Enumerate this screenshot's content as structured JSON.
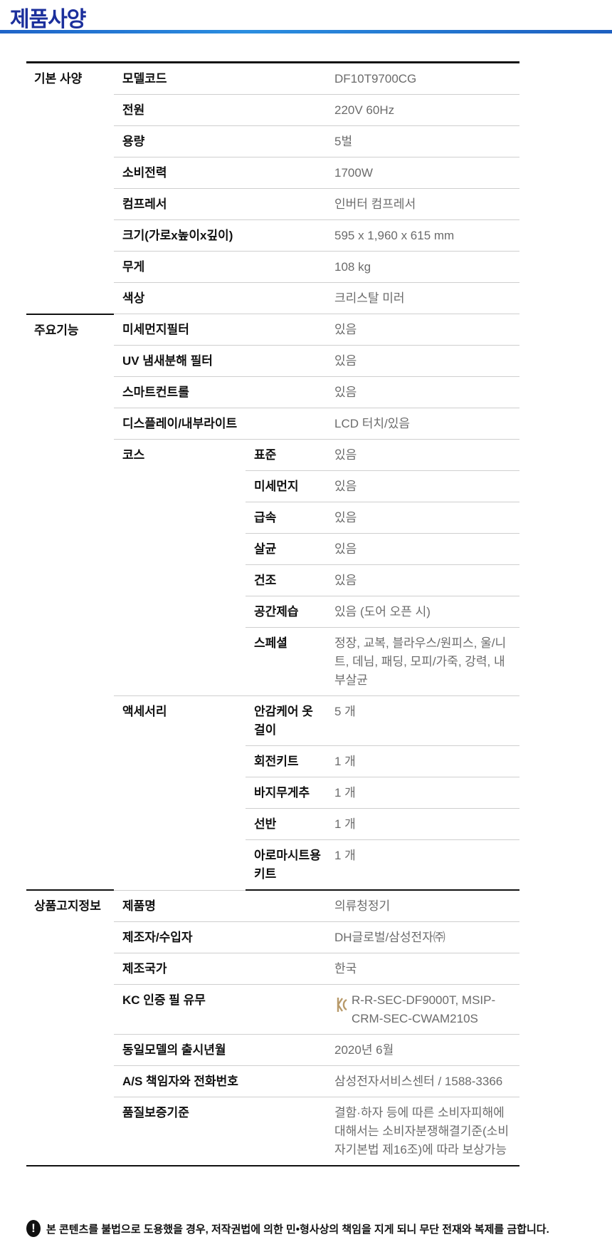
{
  "title": "제품사양",
  "sections": {
    "basic": {
      "label": "기본 사양",
      "rows": [
        {
          "label": "모델코드",
          "value": "DF10T9700CG"
        },
        {
          "label": "전원",
          "value": "220V 60Hz"
        },
        {
          "label": "용량",
          "value": "5벌"
        },
        {
          "label": "소비전력",
          "value": "1700W"
        },
        {
          "label": "컴프레서",
          "value": "인버터 컴프레서"
        },
        {
          "label": "크기(가로x높이x깊이)",
          "value": "595 x 1,960 x 615 mm"
        },
        {
          "label": "무게",
          "value": "108 kg"
        },
        {
          "label": "색상",
          "value": "크리스탈 미러"
        }
      ]
    },
    "features": {
      "label": "주요기능",
      "rows": [
        {
          "label": "미세먼지필터",
          "value": "있음"
        },
        {
          "label": "UV 냄새분해 필터",
          "value": "있음"
        },
        {
          "label": "스마트컨트롤",
          "value": "있음"
        },
        {
          "label": "디스플레이/내부라이트",
          "value": "LCD 터치/있음"
        }
      ],
      "course": {
        "label": "코스",
        "rows": [
          {
            "label": "표준",
            "value": "있음"
          },
          {
            "label": "미세먼지",
            "value": "있음"
          },
          {
            "label": "급속",
            "value": "있음"
          },
          {
            "label": "살균",
            "value": "있음"
          },
          {
            "label": "건조",
            "value": "있음"
          },
          {
            "label": "공간제습",
            "value": "있음 (도어 오픈 시)"
          },
          {
            "label": "스페셜",
            "value": "정장, 교복, 블라우스/원피스, 울/니트, 데님, 패딩, 모피/가죽, 강력, 내부살균"
          }
        ]
      },
      "accessory": {
        "label": "액세서리",
        "rows": [
          {
            "label": "안감케어 옷걸이",
            "value": "5 개"
          },
          {
            "label": "회전키트",
            "value": "1 개"
          },
          {
            "label": "바지무게추",
            "value": "1 개"
          },
          {
            "label": "선반",
            "value": "1 개"
          },
          {
            "label": "아로마시트용 키트",
            "value": "1 개"
          }
        ]
      }
    },
    "notice": {
      "label": "상품고지정보",
      "rows": [
        {
          "label": "제품명",
          "value": "의류청정기"
        },
        {
          "label": "제조자/수입자",
          "value": "DH글로벌/삼성전자㈜"
        },
        {
          "label": "제조국가",
          "value": "한국"
        },
        {
          "label": "KC 인증 필 유무",
          "value": "R-R-SEC-DF9000T, MSIP-CRM-SEC-CWAM210S",
          "icon": "kc-mark-icon"
        },
        {
          "label": "동일모델의 출시년월",
          "value": "2020년 6월"
        },
        {
          "label": "A/S 책임자와 전화번호",
          "value": "삼성전자서비스센터 / 1588-3366"
        },
        {
          "label": "품질보증기준",
          "value": "결함·하자 등에 따른 소비자피해에 대해서는 소비자분쟁해결기준(소비자기본법 제16조)에 따라 보상가능"
        }
      ]
    }
  },
  "footer_notice": "본 콘텐츠를 불법으로 도용했을 경우, 저작권법에 의한 민•형사상의 책임을 지게 되니 무단 전재와 복제를 금합니다.",
  "colors": {
    "title": "#1b2f9c",
    "accent_bar": "#1f64c8",
    "value_text": "#6b6b6b"
  }
}
